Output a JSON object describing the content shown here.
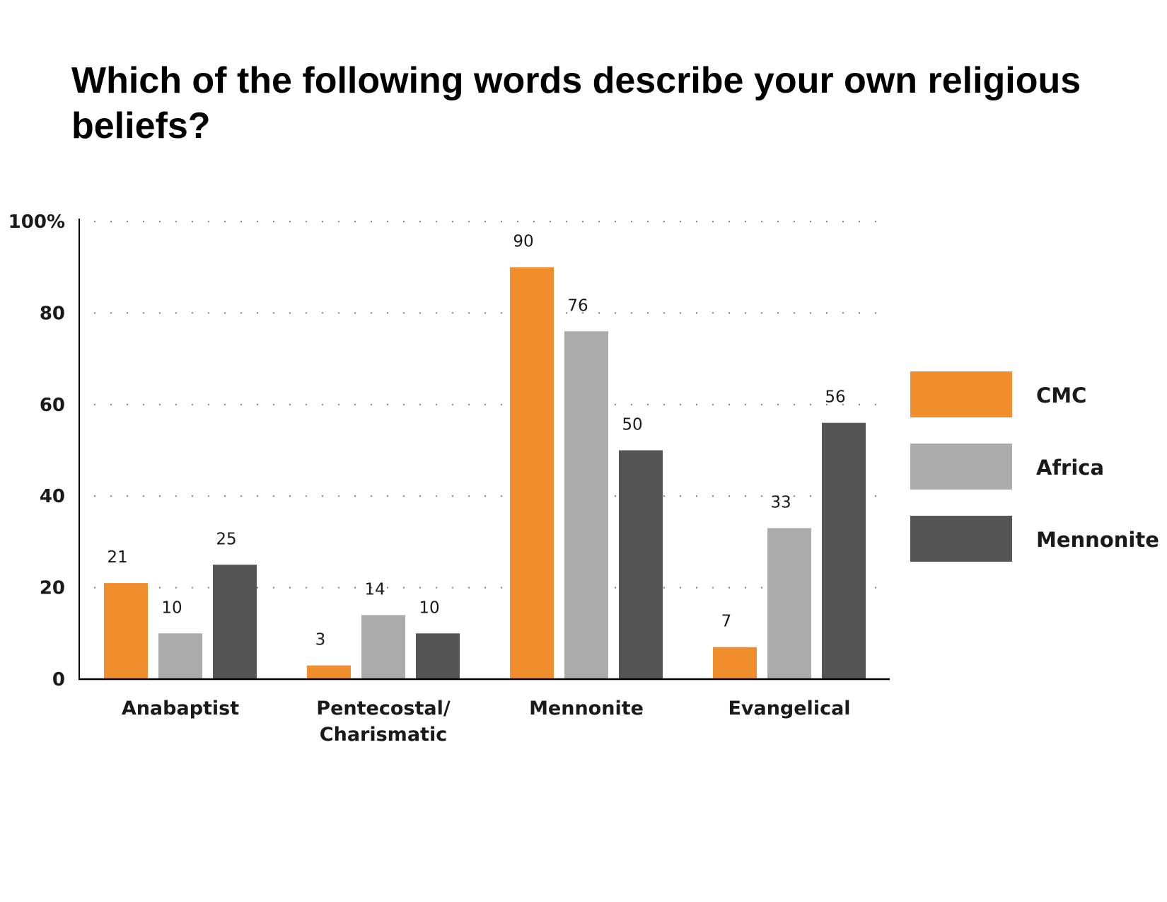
{
  "chart_data": {
    "type": "bar",
    "title": "Which of the following words describe your own religious beliefs?",
    "xlabel": "",
    "ylabel": "",
    "categories": [
      [
        "Anabaptist"
      ],
      [
        "Pentecostal/",
        "Charismatic"
      ],
      [
        "Mennonite"
      ],
      [
        "Evangelical"
      ]
    ],
    "series": [
      {
        "name": "CMC",
        "color": "#F08E2E",
        "values": [
          21,
          3,
          90,
          7
        ]
      },
      {
        "name": "Africa",
        "color": "#ABABAB",
        "values": [
          10,
          14,
          76,
          33
        ]
      },
      {
        "name": "Mennonite",
        "color": "#555555",
        "values": [
          25,
          10,
          50,
          56
        ]
      }
    ],
    "ylim": [
      0,
      100
    ],
    "yticks": [
      0,
      20,
      40,
      60,
      80,
      100
    ],
    "ytick_labels": [
      "0",
      "20",
      "40",
      "60",
      "80",
      "100%"
    ],
    "grid": "horizontal dotted",
    "legend_position": "right",
    "data_labels": true
  }
}
